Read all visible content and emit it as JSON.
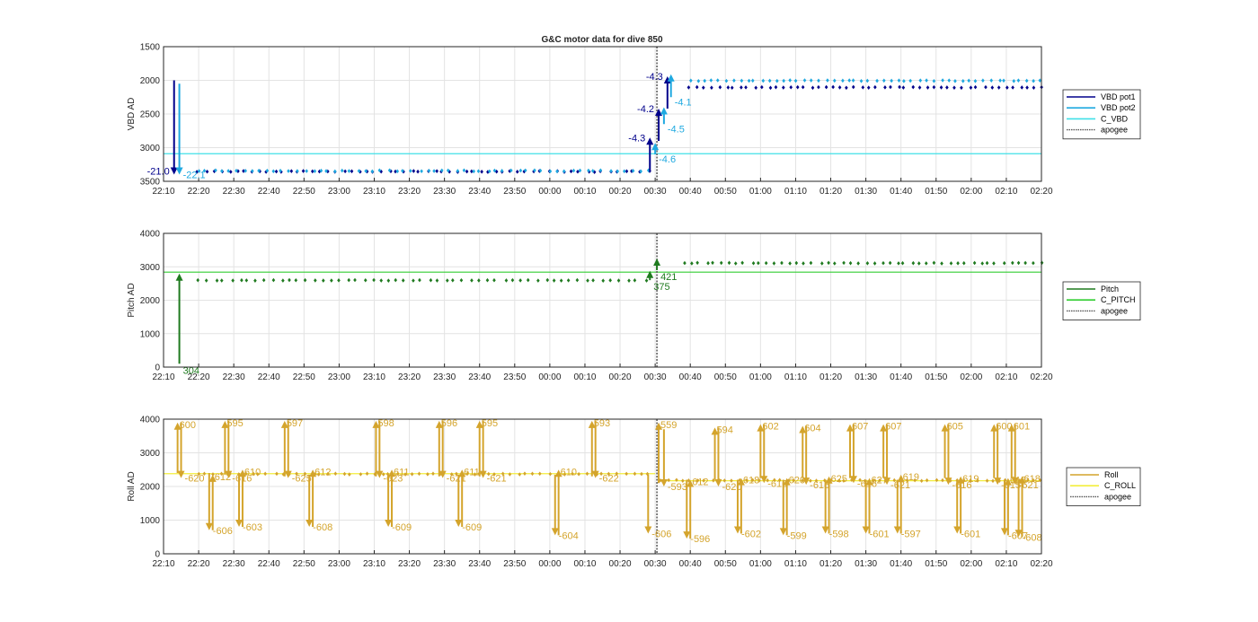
{
  "figure": {
    "title": "G&C motor data for dive 850",
    "x_ticks": [
      "22:10",
      "22:20",
      "22:30",
      "22:40",
      "22:50",
      "23:00",
      "23:10",
      "23:20",
      "23:30",
      "23:40",
      "23:50",
      "00:00",
      "00:10",
      "00:20",
      "00:30",
      "00:40",
      "00:50",
      "01:00",
      "01:10",
      "01:20",
      "01:30",
      "01:40",
      "01:50",
      "02:00",
      "02:10",
      "02:20"
    ]
  },
  "colors": {
    "vbd_pot1": "#00008b",
    "vbd_pot2": "#1fa9e0",
    "c_vbd": "#40e0e8",
    "pitch": "#1f7a1f",
    "c_pitch": "#32cd32",
    "roll": "#d4a42c",
    "c_roll": "#f2ee3c",
    "apogee": "#555555",
    "grid": "#e3e3e3",
    "axis": "#262626"
  },
  "chart_data": [
    {
      "type": "scatter",
      "title": "G&C motor data for dive 850",
      "xlabel": "",
      "ylabel": "VBD AD",
      "x_axis": "time (minutes after 22:10)",
      "xlim": [
        0,
        250
      ],
      "ylim": [
        1500,
        3500
      ],
      "y_reversed": true,
      "yticks": [
        1500,
        2000,
        2500,
        3000,
        3500
      ],
      "grid": true,
      "legend_position": "right",
      "legend": [
        {
          "label": "VBD pot1",
          "style": "line",
          "color_key": "vbd_pot1"
        },
        {
          "label": "VBD pot2",
          "style": "line",
          "color_key": "vbd_pot2"
        },
        {
          "label": "C_VBD",
          "style": "line",
          "color_key": "c_vbd"
        },
        {
          "label": "apogee",
          "style": "dotted",
          "color_key": "apogee"
        }
      ],
      "apogee_x": 140.5,
      "reference_lines": [
        {
          "y": 3090,
          "color_key": "c_vbd"
        }
      ],
      "scatter_series": [
        {
          "color_key": "vbd_pot1",
          "x_start": 10,
          "x_end": 138,
          "count": 60,
          "y": 3355,
          "jitter": 8
        },
        {
          "color_key": "vbd_pot2",
          "x_start": 10,
          "x_end": 138,
          "count": 60,
          "y": 3345,
          "jitter": 8
        },
        {
          "color_key": "vbd_pot1",
          "x_start": 150,
          "x_end": 250,
          "count": 50,
          "y": 2105,
          "jitter": 6
        },
        {
          "color_key": "vbd_pot2",
          "x_start": 150,
          "x_end": 250,
          "count": 50,
          "y": 2005,
          "jitter": 6
        }
      ],
      "arrows": [
        {
          "x": 3.0,
          "from": 2000,
          "to": 3400,
          "color_key": "vbd_pot1",
          "label": "-21.0",
          "label_side": "left"
        },
        {
          "x": 4.5,
          "from": 2050,
          "to": 3400,
          "color_key": "vbd_pot2",
          "label": "-22.1",
          "label_side": "right-below"
        },
        {
          "x": 138.5,
          "from": 3350,
          "to": 2850,
          "color_key": "vbd_pot1",
          "label": "-4.3",
          "label_side": "left"
        },
        {
          "x": 140.0,
          "from": 3100,
          "to": 2930,
          "color_key": "vbd_pot2",
          "label": "-4.6",
          "label_side": "right-below"
        },
        {
          "x": 141.0,
          "from": 2900,
          "to": 2420,
          "color_key": "vbd_pot1",
          "label": "-4.2",
          "label_side": "left"
        },
        {
          "x": 142.5,
          "from": 2650,
          "to": 2400,
          "color_key": "vbd_pot2",
          "label": "-4.5",
          "label_side": "right-below"
        },
        {
          "x": 143.5,
          "from": 2420,
          "to": 1940,
          "color_key": "vbd_pot1",
          "label": "-4.3",
          "label_side": "left"
        },
        {
          "x": 144.5,
          "from": 2250,
          "to": 1910,
          "color_key": "vbd_pot2",
          "label": "-4.1",
          "label_side": "right-below"
        }
      ]
    },
    {
      "type": "scatter",
      "title": "",
      "xlabel": "",
      "ylabel": "Pitch AD",
      "x_axis": "time (minutes after 22:10)",
      "xlim": [
        0,
        250
      ],
      "ylim": [
        0,
        4000
      ],
      "y_reversed": false,
      "yticks": [
        0,
        1000,
        2000,
        3000,
        4000
      ],
      "grid": true,
      "legend_position": "right",
      "legend": [
        {
          "label": "Pitch",
          "style": "line",
          "color_key": "pitch"
        },
        {
          "label": "C_PITCH",
          "style": "line",
          "color_key": "c_pitch"
        },
        {
          "label": "apogee",
          "style": "dotted",
          "color_key": "apogee"
        }
      ],
      "apogee_x": 140.5,
      "reference_lines": [
        {
          "x_start": 0,
          "x_end": 140.5,
          "y": 2840,
          "color_key": "c_pitch"
        },
        {
          "x_start": 140.5,
          "x_end": 250,
          "y": 2840,
          "color_key": "c_pitch"
        }
      ],
      "scatter_series": [
        {
          "color_key": "pitch",
          "x_start": 10,
          "x_end": 137,
          "count": 55,
          "y": 2595,
          "jitter": 10
        },
        {
          "color_key": "pitch",
          "x_start": 148,
          "x_end": 250,
          "count": 48,
          "y": 3110,
          "jitter": 10
        }
      ],
      "arrows": [
        {
          "x": 4.5,
          "from": 100,
          "to": 2800,
          "color_key": "pitch",
          "label": "304",
          "label_side": "right-below"
        },
        {
          "x": 138.5,
          "from": 2600,
          "to": 2880,
          "color_key": "pitch",
          "label": "375",
          "label_side": "right-below"
        },
        {
          "x": 140.5,
          "from": 2900,
          "to": 3250,
          "color_key": "pitch",
          "label": "421",
          "label_side": "right-below"
        }
      ]
    },
    {
      "type": "scatter",
      "title": "",
      "xlabel": "",
      "ylabel": "Roll AD",
      "x_axis": "time (minutes after 22:10)",
      "xlim": [
        0,
        250
      ],
      "ylim": [
        0,
        4000
      ],
      "y_reversed": false,
      "yticks": [
        0,
        1000,
        2000,
        3000,
        4000
      ],
      "grid": true,
      "legend_position": "right",
      "legend": [
        {
          "label": "Roll",
          "style": "line",
          "color_key": "roll"
        },
        {
          "label": "C_ROLL",
          "style": "line",
          "color_key": "c_roll"
        },
        {
          "label": "apogee",
          "style": "dotted",
          "color_key": "apogee"
        }
      ],
      "apogee_x": 140.5,
      "reference_lines": [
        {
          "x_start": 0,
          "x_end": 140,
          "y": 2380,
          "color_key": "c_roll"
        },
        {
          "x_start": 141,
          "x_end": 250,
          "y": 2170,
          "color_key": "c_roll"
        }
      ],
      "scatter_series": [
        {
          "color_key": "roll",
          "x_start": 10,
          "x_end": 138,
          "count": 60,
          "y": 2370,
          "jitter": 12
        },
        {
          "color_key": "roll",
          "x_start": 142,
          "x_end": 250,
          "count": 55,
          "y": 2180,
          "jitter": 15
        }
      ],
      "arrows": [
        {
          "x": 4.0,
          "from": 2400,
          "to": 3900,
          "color_key": "roll",
          "label": "600",
          "label_side": "right-top"
        },
        {
          "x": 5.0,
          "from": 3900,
          "to": 2250,
          "color_key": "roll",
          "label": "-620",
          "label_side": "right-below"
        },
        {
          "x": 13.0,
          "from": 2400,
          "to": 700,
          "color_key": "roll",
          "label": "-606",
          "label_side": "right-below"
        },
        {
          "x": 14.0,
          "from": 700,
          "to": 2350,
          "color_key": "roll",
          "label": "612",
          "label_side": "right-top"
        },
        {
          "x": 17.5,
          "from": 2350,
          "to": 3950,
          "color_key": "roll",
          "label": "595",
          "label_side": "right-top"
        },
        {
          "x": 18.5,
          "from": 3950,
          "to": 2250,
          "color_key": "roll",
          "label": "-616",
          "label_side": "right-below"
        },
        {
          "x": 21.5,
          "from": 2400,
          "to": 800,
          "color_key": "roll",
          "label": "-603",
          "label_side": "right-below"
        },
        {
          "x": 22.5,
          "from": 800,
          "to": 2500,
          "color_key": "roll",
          "label": "610",
          "label_side": "right-top"
        },
        {
          "x": 34.5,
          "from": 2300,
          "to": 3950,
          "color_key": "roll",
          "label": "597",
          "label_side": "right-top"
        },
        {
          "x": 35.5,
          "from": 3950,
          "to": 2250,
          "color_key": "roll",
          "label": "-625",
          "label_side": "right-below"
        },
        {
          "x": 41.5,
          "from": 2350,
          "to": 800,
          "color_key": "roll",
          "label": "-608",
          "label_side": "right-below"
        },
        {
          "x": 42.5,
          "from": 800,
          "to": 2500,
          "color_key": "roll",
          "label": "612",
          "label_side": "right-top"
        },
        {
          "x": 60.5,
          "from": 2300,
          "to": 3950,
          "color_key": "roll",
          "label": "598",
          "label_side": "right-top"
        },
        {
          "x": 61.5,
          "from": 3950,
          "to": 2250,
          "color_key": "roll",
          "label": "-623",
          "label_side": "right-below"
        },
        {
          "x": 64.0,
          "from": 2350,
          "to": 800,
          "color_key": "roll",
          "label": "-609",
          "label_side": "right-below"
        },
        {
          "x": 65.0,
          "from": 800,
          "to": 2500,
          "color_key": "roll",
          "label": "611",
          "label_side": "right-top"
        },
        {
          "x": 78.5,
          "from": 2300,
          "to": 3950,
          "color_key": "roll",
          "label": "596",
          "label_side": "right-top"
        },
        {
          "x": 79.5,
          "from": 3950,
          "to": 2250,
          "color_key": "roll",
          "label": "-621",
          "label_side": "right-below"
        },
        {
          "x": 84.0,
          "from": 2350,
          "to": 800,
          "color_key": "roll",
          "label": "-609",
          "label_side": "right-below"
        },
        {
          "x": 85.0,
          "from": 800,
          "to": 2500,
          "color_key": "roll",
          "label": "611",
          "label_side": "right-top"
        },
        {
          "x": 90.0,
          "from": 2300,
          "to": 3950,
          "color_key": "roll",
          "label": "595",
          "label_side": "right-top"
        },
        {
          "x": 91.0,
          "from": 3950,
          "to": 2250,
          "color_key": "roll",
          "label": "-621",
          "label_side": "right-below"
        },
        {
          "x": 111.5,
          "from": 2350,
          "to": 550,
          "color_key": "roll",
          "label": "-604",
          "label_side": "right-below"
        },
        {
          "x": 112.5,
          "from": 550,
          "to": 2500,
          "color_key": "roll",
          "label": "610",
          "label_side": "right-top"
        },
        {
          "x": 122.0,
          "from": 2300,
          "to": 3950,
          "color_key": "roll",
          "label": "593",
          "label_side": "right-top"
        },
        {
          "x": 123.0,
          "from": 3950,
          "to": 2250,
          "color_key": "roll",
          "label": "-622",
          "label_side": "right-below"
        },
        {
          "x": 138.0,
          "from": 2350,
          "to": 600,
          "color_key": "roll",
          "label": "-606",
          "label_side": "right-below"
        },
        {
          "x": 141.0,
          "from": 2100,
          "to": 3900,
          "color_key": "roll",
          "label": "559",
          "label_side": "right-top"
        },
        {
          "x": 142.5,
          "from": 3700,
          "to": 2000,
          "color_key": "roll",
          "label": "-593",
          "label_side": "right-below"
        },
        {
          "x": 149.0,
          "from": 2200,
          "to": 450,
          "color_key": "roll",
          "label": "-596",
          "label_side": "right-below"
        },
        {
          "x": 150.0,
          "from": 450,
          "to": 2200,
          "color_key": "roll",
          "label": "612",
          "label_side": "right-top"
        },
        {
          "x": 157.0,
          "from": 2200,
          "to": 3750,
          "color_key": "roll",
          "label": "594",
          "label_side": "right-top"
        },
        {
          "x": 158.0,
          "from": 3750,
          "to": 2000,
          "color_key": "roll",
          "label": "-620",
          "label_side": "right-below"
        },
        {
          "x": 163.5,
          "from": 2200,
          "to": 600,
          "color_key": "roll",
          "label": "-602",
          "label_side": "right-below"
        },
        {
          "x": 164.5,
          "from": 600,
          "to": 2250,
          "color_key": "roll",
          "label": "618",
          "label_side": "right-top"
        },
        {
          "x": 170.0,
          "from": 2250,
          "to": 3850,
          "color_key": "roll",
          "label": "602",
          "label_side": "right-top"
        },
        {
          "x": 171.0,
          "from": 3850,
          "to": 2100,
          "color_key": "roll",
          "label": "-616",
          "label_side": "right-below"
        },
        {
          "x": 176.5,
          "from": 2200,
          "to": 550,
          "color_key": "roll",
          "label": "-599",
          "label_side": "right-below"
        },
        {
          "x": 177.5,
          "from": 550,
          "to": 2250,
          "color_key": "roll",
          "label": "620",
          "label_side": "right-top"
        },
        {
          "x": 182.0,
          "from": 2250,
          "to": 3800,
          "color_key": "roll",
          "label": "604",
          "label_side": "right-top"
        },
        {
          "x": 183.0,
          "from": 3800,
          "to": 2050,
          "color_key": "roll",
          "label": "-616",
          "label_side": "right-below"
        },
        {
          "x": 188.5,
          "from": 2200,
          "to": 600,
          "color_key": "roll",
          "label": "-598",
          "label_side": "right-below"
        },
        {
          "x": 189.5,
          "from": 600,
          "to": 2300,
          "color_key": "roll",
          "label": "625",
          "label_side": "right-top"
        },
        {
          "x": 195.5,
          "from": 2250,
          "to": 3850,
          "color_key": "roll",
          "label": "607",
          "label_side": "right-top"
        },
        {
          "x": 196.5,
          "from": 3850,
          "to": 2100,
          "color_key": "roll",
          "label": "-616",
          "label_side": "right-below"
        },
        {
          "x": 200.0,
          "from": 2200,
          "to": 600,
          "color_key": "roll",
          "label": "-601",
          "label_side": "right-below"
        },
        {
          "x": 201.0,
          "from": 600,
          "to": 2250,
          "color_key": "roll",
          "label": "627",
          "label_side": "right-top"
        },
        {
          "x": 205.0,
          "from": 2250,
          "to": 3850,
          "color_key": "roll",
          "label": "607",
          "label_side": "right-top"
        },
        {
          "x": 206.0,
          "from": 3850,
          "to": 2050,
          "color_key": "roll",
          "label": "-621",
          "label_side": "right-below"
        },
        {
          "x": 209.0,
          "from": 2200,
          "to": 600,
          "color_key": "roll",
          "label": "-597",
          "label_side": "right-below"
        },
        {
          "x": 210.0,
          "from": 600,
          "to": 2350,
          "color_key": "roll",
          "label": "619",
          "label_side": "right-top"
        },
        {
          "x": 222.5,
          "from": 2250,
          "to": 3850,
          "color_key": "roll",
          "label": "605",
          "label_side": "right-top"
        },
        {
          "x": 223.5,
          "from": 3850,
          "to": 2050,
          "color_key": "roll",
          "label": "-616",
          "label_side": "right-below"
        },
        {
          "x": 226.0,
          "from": 2200,
          "to": 600,
          "color_key": "roll",
          "label": "-601",
          "label_side": "right-below"
        },
        {
          "x": 227.0,
          "from": 600,
          "to": 2300,
          "color_key": "roll",
          "label": "619",
          "label_side": "right-top"
        },
        {
          "x": 236.5,
          "from": 2250,
          "to": 3850,
          "color_key": "roll",
          "label": "600",
          "label_side": "right-top"
        },
        {
          "x": 237.5,
          "from": 3850,
          "to": 2050,
          "color_key": "roll",
          "label": "-615",
          "label_side": "right-below"
        },
        {
          "x": 239.5,
          "from": 2200,
          "to": 550,
          "color_key": "roll",
          "label": "-607",
          "label_side": "right-below"
        },
        {
          "x": 240.5,
          "from": 550,
          "to": 2250,
          "color_key": "roll",
          "label": "615",
          "label_side": "right-top"
        },
        {
          "x": 241.5,
          "from": 2250,
          "to": 3850,
          "color_key": "roll",
          "label": "601",
          "label_side": "right-top"
        },
        {
          "x": 242.5,
          "from": 3850,
          "to": 2050,
          "color_key": "roll",
          "label": "-621",
          "label_side": "right-below"
        },
        {
          "x": 243.5,
          "from": 2200,
          "to": 500,
          "color_key": "roll",
          "label": "-608",
          "label_side": "right-below"
        },
        {
          "x": 244.5,
          "from": 500,
          "to": 2300,
          "color_key": "roll",
          "label": "618",
          "label_side": "right-top"
        }
      ]
    }
  ]
}
